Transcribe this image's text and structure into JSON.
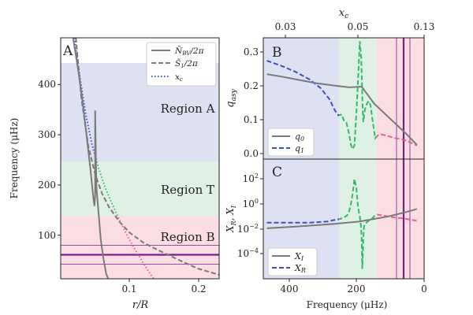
{
  "chart_data": [
    {
      "panel": "A",
      "type": "line",
      "xlabel": "r/R",
      "ylabel": "Frequency (μHz)",
      "xlim": [
        0,
        0.23
      ],
      "ylim": [
        20,
        500
      ],
      "xticks": [
        0.1,
        0.2
      ],
      "yticks": [
        100,
        200,
        300,
        400
      ],
      "legend": {
        "placement": "top-right",
        "entries": [
          "N̄_BV/2π",
          "S̃_1/2π",
          "x_c"
        ]
      },
      "regions": [
        {
          "name": "Region A",
          "range": [
            245,
            440
          ],
          "color": "#dde1f2"
        },
        {
          "name": "Region T",
          "range": [
            137,
            245
          ],
          "color": "#dff1e5"
        },
        {
          "name": "Region B",
          "range": [
            20,
            137
          ],
          "color": "#fbdde4"
        }
      ],
      "hlines": [
        {
          "y": 60,
          "color": "#7b1d8c",
          "style": "solid"
        },
        {
          "y": 80,
          "color": "#7b1d8c",
          "style": "thin"
        },
        {
          "y": 42,
          "color": "#7b1d8c",
          "style": "thin"
        }
      ],
      "series": [
        {
          "name": "N̄_BV/2π",
          "color": "#7a7a7a",
          "style": "solid",
          "x": [
            0.018,
            0.025,
            0.032,
            0.038,
            0.043,
            0.046,
            0.048,
            0.049,
            0.05,
            0.05,
            0.051,
            0.052,
            0.055,
            0.058,
            0.062,
            0.066,
            0.069
          ],
          "y": [
            500,
            440,
            370,
            300,
            240,
            200,
            175,
            165,
            185,
            355,
            260,
            200,
            150,
            100,
            60,
            30,
            20
          ]
        },
        {
          "name": "S̃_1/2π",
          "color": "#7a7a7a",
          "style": "dashed",
          "x": [
            0.022,
            0.03,
            0.04,
            0.05,
            0.06,
            0.07,
            0.085,
            0.1,
            0.12,
            0.14,
            0.16,
            0.18,
            0.2,
            0.23
          ],
          "y": [
            500,
            380,
            285,
            228,
            190,
            163,
            134,
            112,
            92,
            78,
            65,
            52,
            40,
            28
          ]
        },
        {
          "name": "x_c",
          "color": "#3e4fc6",
          "style": "dotted",
          "segment_color_bands": true,
          "x": [
            0.02,
            0.028,
            0.036,
            0.045,
            0.055,
            0.065,
            0.075,
            0.085,
            0.095,
            0.105,
            0.115,
            0.125,
            0.135
          ],
          "y": [
            500,
            420,
            350,
            290,
            240,
            200,
            168,
            138,
            110,
            85,
            62,
            40,
            20
          ]
        }
      ]
    },
    {
      "panel": "B",
      "type": "line",
      "xlabel_top": "x_c",
      "ylabel": "q_asy",
      "xlim": [
        450,
        0
      ],
      "ylim": [
        -0.03,
        0.33
      ],
      "yticks": [
        0.0,
        0.1,
        0.2,
        0.3
      ],
      "top_ticks": [
        {
          "label": "0.03",
          "f": 412
        },
        {
          "label": "0.05",
          "f": 183
        },
        {
          "label": "0.13",
          "f": 0
        }
      ],
      "legend": {
        "placement": "bottom-left",
        "entries": [
          "q_0",
          "q_1"
        ]
      },
      "regions": [
        {
          "range": [
            450,
            245
          ],
          "color": "#dde1f2"
        },
        {
          "range": [
            245,
            137
          ],
          "color": "#dff1e5"
        },
        {
          "range": [
            137,
            0
          ],
          "color": "#fbdde4"
        }
      ],
      "vlines": [
        {
          "x": 60,
          "color": "#7b1d8c",
          "style": "solid"
        },
        {
          "x": 80,
          "color": "#7b1d8c",
          "style": "thin"
        },
        {
          "x": 42,
          "color": "#7b1d8c",
          "style": "thin"
        }
      ],
      "series": [
        {
          "name": "q_0",
          "color": "#7a7a7a",
          "style": "solid",
          "x": [
            440,
            400,
            350,
            300,
            250,
            210,
            175,
            140,
            110,
            80,
            50,
            20
          ],
          "y": [
            0.222,
            0.215,
            0.205,
            0.195,
            0.188,
            0.183,
            0.185,
            0.135,
            0.105,
            0.075,
            0.045,
            0.012
          ]
        },
        {
          "name": "q_1",
          "color": "#3e4fc6",
          "style": "dashed",
          "segment_color_bands": true,
          "x": [
            440,
            400,
            360,
            320,
            290,
            265,
            250,
            240,
            230,
            225,
            218,
            210,
            205,
            200,
            195,
            190,
            185,
            180,
            176,
            174,
            172,
            170,
            168,
            165,
            160,
            155,
            150,
            145,
            140,
            137,
            130,
            120,
            110,
            100,
            90,
            80,
            70,
            60,
            50,
            40,
            30,
            20
          ],
          "y": [
            0.262,
            0.247,
            0.229,
            0.206,
            0.181,
            0.148,
            0.115,
            0.1,
            0.102,
            0.085,
            0.08,
            0.045,
            0.012,
            0.0,
            0.01,
            0.1,
            0.2,
            0.32,
            0.27,
            0.2,
            0.12,
            0.08,
            0.1,
            0.12,
            0.135,
            0.142,
            0.13,
            0.09,
            0.055,
            0.032,
            0.04,
            0.043,
            0.041,
            0.038,
            0.035,
            0.032,
            0.03,
            0.028,
            0.025,
            0.02,
            0.015,
            0.01
          ]
        }
      ]
    },
    {
      "panel": "C",
      "type": "line",
      "xlabel": "Frequency (μHz)",
      "ylabel": "X_R, X_I",
      "yscale": "log",
      "xlim": [
        450,
        0
      ],
      "ylim_exp": [
        -5.8,
        3.8
      ],
      "xticks": [
        400,
        200,
        0
      ],
      "yticks": [
        "10^{-4}",
        "10^{-2}",
        "10^{0}",
        "10^{2}"
      ],
      "legend": {
        "placement": "bottom-left",
        "entries": [
          "X_I",
          "X_R"
        ]
      },
      "regions": [
        {
          "range": [
            450,
            245
          ],
          "color": "#dde1f2"
        },
        {
          "range": [
            245,
            137
          ],
          "color": "#dff1e5"
        },
        {
          "range": [
            137,
            0
          ],
          "color": "#fbdde4"
        }
      ],
      "vlines": [
        {
          "x": 60,
          "color": "#7b1d8c",
          "style": "solid"
        },
        {
          "x": 80,
          "color": "#7b1d8c",
          "style": "thin"
        },
        {
          "x": 42,
          "color": "#7b1d8c",
          "style": "thin"
        }
      ],
      "series": [
        {
          "name": "X_I",
          "color": "#7a7a7a",
          "style": "solid",
          "x_exp": [
            440,
            350,
            250,
            180,
            100,
            50,
            20
          ],
          "y_exp": [
            -1.75,
            -1.6,
            -1.4,
            -1.2,
            -0.8,
            -0.45,
            -0.2
          ]
        },
        {
          "name": "X_R",
          "color": "#3e4fc6",
          "style": "dashed",
          "segment_color_bands": true,
          "x_exp": [
            440,
            380,
            320,
            270,
            245,
            235,
            225,
            215,
            210,
            205,
            200,
            195,
            190,
            185,
            180,
            177,
            175,
            173,
            170,
            168,
            165,
            160,
            155,
            150,
            145,
            140,
            137,
            130,
            120,
            100,
            80,
            60,
            40,
            20
          ],
          "y_exp": [
            -1.3,
            -1.3,
            -1.3,
            -1.2,
            -1.05,
            -1.0,
            -0.9,
            -0.7,
            -0.4,
            0.2,
            1.0,
            2.2,
            1.5,
            0.0,
            -0.8,
            -1.5,
            -2.5,
            -5.0,
            -2.5,
            -1.6,
            -1.4,
            -1.25,
            -1.15,
            -1.05,
            -0.95,
            -0.8,
            -0.7,
            -0.65,
            -0.7,
            -0.8,
            -0.9,
            -0.95,
            -1.05,
            -1.15
          ]
        }
      ]
    }
  ],
  "labels": {
    "A": "A",
    "B": "B",
    "C": "C",
    "region_a": "Region A",
    "region_t": "Region T",
    "region_b": "Region B"
  },
  "colors": {
    "band_a": "#dde1f2",
    "band_t": "#dff1e5",
    "band_b": "#fbdde4",
    "region_a_text": "#6b74c4",
    "region_t_text": "#4cb86a",
    "region_b_text": "#e0667d",
    "blue_line": "#3e4fc6",
    "green_line": "#33b866",
    "red_line": "#ea6278",
    "gray_line": "#7a7a7a",
    "purple_line": "#7b1d8c"
  }
}
